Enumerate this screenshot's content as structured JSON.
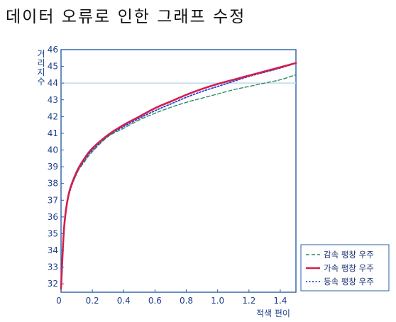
{
  "title": "데이터 오류로 인한 그래프 수정",
  "colors": {
    "frame": "#2c5fa6",
    "tick_text": "#1e3f8a",
    "grid": "#bfd9ef",
    "accel": "#d21f4c",
    "decel": "#2f8a66",
    "const": "#2a3fcf"
  },
  "chart_data": {
    "type": "line",
    "title": "데이터 오류로 인한 그래프 수정",
    "xlabel": "적색 편이",
    "ylabel": "거리 지수",
    "xlim": [
      0,
      1.5
    ],
    "ylim": [
      31.5,
      46
    ],
    "xticks": [
      "0",
      "0.2",
      "0.4",
      "0.6",
      "0.8",
      "1.0",
      "1.2",
      "1.4"
    ],
    "yticks": [
      "32",
      "33",
      "34",
      "35",
      "36",
      "37",
      "38",
      "39",
      "40",
      "41",
      "42",
      "43",
      "44",
      "45",
      "46"
    ],
    "grid": false,
    "legend_position": "bottom-right",
    "reference_line": 44,
    "x": [
      0.0,
      0.02,
      0.05,
      0.1,
      0.15,
      0.2,
      0.3,
      0.4,
      0.5,
      0.6,
      0.7,
      0.8,
      0.9,
      1.0,
      1.1,
      1.2,
      1.3,
      1.4,
      1.5
    ],
    "series": [
      {
        "name": "감속 팽창 우주",
        "style": "dashed",
        "color": "#2f8a66",
        "values": [
          31.7,
          35.3,
          37.3,
          38.6,
          39.3,
          39.9,
          40.8,
          41.3,
          41.8,
          42.2,
          42.55,
          42.85,
          43.1,
          43.35,
          43.6,
          43.8,
          44.0,
          44.2,
          44.5
        ]
      },
      {
        "name": "가속 팽창 우주",
        "style": "solid",
        "color": "#d21f4c",
        "values": [
          31.7,
          35.4,
          37.4,
          38.7,
          39.5,
          40.1,
          40.9,
          41.5,
          42.0,
          42.5,
          42.9,
          43.3,
          43.65,
          43.95,
          44.2,
          44.45,
          44.7,
          44.95,
          45.2
        ]
      },
      {
        "name": "등속 팽창 우주",
        "style": "dotted",
        "color": "#2a3fcf",
        "values": [
          31.7,
          35.4,
          37.3,
          38.6,
          39.4,
          40.0,
          40.85,
          41.4,
          41.9,
          42.35,
          42.75,
          43.15,
          43.5,
          43.8,
          44.1,
          44.4,
          44.65,
          44.9,
          45.2
        ]
      }
    ]
  }
}
